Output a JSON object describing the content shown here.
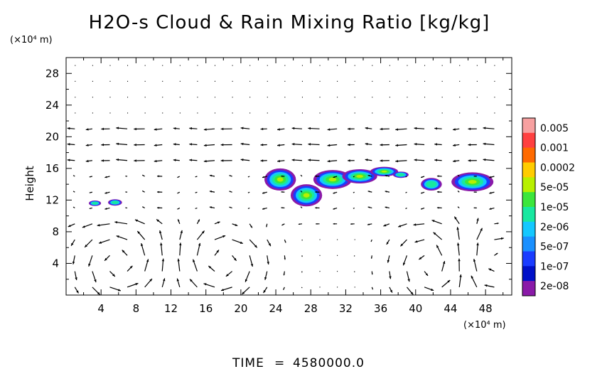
{
  "chart_data": {
    "type": "heatmap",
    "title": "H2O-s Cloud & Rain Mixing Ratio [kg/kg]",
    "ylabel": "Height",
    "xunit": "(×10⁴ m)",
    "yunit": "(×10⁴ m)",
    "xlim": [
      0,
      51
    ],
    "ylim": [
      0,
      30
    ],
    "xticks": [
      4,
      8,
      12,
      16,
      20,
      24,
      28,
      32,
      36,
      40,
      44,
      48
    ],
    "yticks": [
      4,
      8,
      12,
      16,
      20,
      24,
      28
    ],
    "colorbar": {
      "labels": [
        "0.005",
        "0.001",
        "0.0002",
        "5e-05",
        "1e-05",
        "2e-06",
        "5e-07",
        "1e-07",
        "2e-08"
      ],
      "colors": [
        "#f7a0a0",
        "#ff4040",
        "#ff6a00",
        "#ffcc00",
        "#b8f000",
        "#3ce63c",
        "#18e8a0",
        "#14c8ff",
        "#1a90ff",
        "#1a3cff",
        "#0010c8",
        "#8a1aa8"
      ]
    },
    "cloud_regions": [
      {
        "x": 3.3,
        "y": 11.6,
        "rx": 0.7,
        "ry": 0.35
      },
      {
        "x": 5.6,
        "y": 11.7,
        "rx": 0.8,
        "ry": 0.4
      },
      {
        "x": 24.5,
        "y": 14.6,
        "rx": 1.8,
        "ry": 1.4
      },
      {
        "x": 27.5,
        "y": 12.6,
        "rx": 1.8,
        "ry": 1.4
      },
      {
        "x": 30.5,
        "y": 14.6,
        "rx": 2.2,
        "ry": 1.2
      },
      {
        "x": 33.6,
        "y": 15.0,
        "rx": 2.0,
        "ry": 0.9
      },
      {
        "x": 36.4,
        "y": 15.6,
        "rx": 1.6,
        "ry": 0.6
      },
      {
        "x": 38.3,
        "y": 15.2,
        "rx": 0.9,
        "ry": 0.4
      },
      {
        "x": 41.8,
        "y": 14.0,
        "rx": 1.2,
        "ry": 0.8
      },
      {
        "x": 46.5,
        "y": 14.3,
        "rx": 2.4,
        "ry": 1.2
      }
    ],
    "wind_field": "vector arrows on a regular grid; circulation cells near x≈6, 18, 42, 48 below 10 km height; mostly leftward flow near 16–21 km"
  },
  "footer": {
    "time_label": "TIME",
    "time_eq": "=",
    "time_value": "4580000.0"
  }
}
